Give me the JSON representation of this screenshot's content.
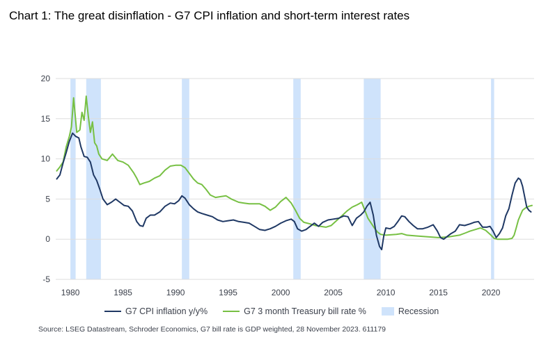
{
  "title": "Chart 1: The great disinflation - G7 CPI inflation and short-term interest rates",
  "source": "Source: LSEG Datastream, Schroder Economics, G7 bill rate is GDP weighted, 28 November 2023. 611179",
  "colors": {
    "cpi": "#1f3864",
    "bill": "#77c043",
    "recession": "#cfe3fb",
    "grid": "#dedede"
  },
  "chart_data": {
    "type": "line",
    "title": "Chart 1: The great disinflation - G7 CPI inflation and short-term interest rates",
    "xlabel": "",
    "ylabel": "",
    "xlim": [
      1978.6,
      2024.1
    ],
    "ylim": [
      -5,
      20
    ],
    "y_ticks": [
      20,
      15,
      10,
      5,
      0,
      -5
    ],
    "x_ticks": [
      1980,
      1985,
      1990,
      1995,
      2000,
      2005,
      2010,
      2015,
      2020
    ],
    "grid": true,
    "legend": "bottom",
    "recessions": [
      [
        1980.0,
        1980.5
      ],
      [
        1981.5,
        1982.9
      ],
      [
        1990.6,
        1991.3
      ],
      [
        2001.2,
        2001.9
      ],
      [
        2007.9,
        2009.5
      ],
      [
        2020.0,
        2020.3
      ]
    ],
    "series": [
      {
        "name": "G7 CPI inflation y/y%",
        "x": [
          1978.7,
          1979.0,
          1979.3,
          1979.6,
          1979.9,
          1980.2,
          1980.5,
          1980.8,
          1981.0,
          1981.3,
          1981.6,
          1981.9,
          1982.2,
          1982.5,
          1982.8,
          1983.1,
          1983.5,
          1983.9,
          1984.3,
          1984.7,
          1985.1,
          1985.5,
          1985.9,
          1986.3,
          1986.6,
          1986.9,
          1987.2,
          1987.6,
          1988.0,
          1988.5,
          1989.0,
          1989.5,
          1989.9,
          1990.3,
          1990.6,
          1990.9,
          1991.3,
          1991.7,
          1992.1,
          1992.5,
          1993.0,
          1993.5,
          1994.0,
          1994.5,
          1995.0,
          1995.5,
          1996.0,
          1996.5,
          1997.0,
          1997.5,
          1998.0,
          1998.5,
          1999.0,
          1999.5,
          2000.0,
          2000.5,
          2001.0,
          2001.3,
          2001.6,
          2002.0,
          2002.4,
          2002.8,
          2003.2,
          2003.6,
          2004.0,
          2004.5,
          2005.0,
          2005.5,
          2006.0,
          2006.4,
          2006.8,
          2007.2,
          2007.6,
          2007.9,
          2008.2,
          2008.5,
          2008.8,
          2009.1,
          2009.4,
          2009.6,
          2009.8,
          2010.0,
          2010.4,
          2010.8,
          2011.2,
          2011.5,
          2011.8,
          2012.2,
          2012.6,
          2013.0,
          2013.5,
          2014.0,
          2014.5,
          2014.9,
          2015.2,
          2015.5,
          2015.8,
          2016.2,
          2016.6,
          2017.0,
          2017.5,
          2018.0,
          2018.4,
          2018.8,
          2019.2,
          2019.6,
          2019.9,
          2020.2,
          2020.5,
          2020.8,
          2021.1,
          2021.4,
          2021.7,
          2022.0,
          2022.3,
          2022.6,
          2022.8,
          2023.0,
          2023.2,
          2023.4,
          2023.6,
          2023.8
        ],
        "y": [
          7.5,
          8.0,
          9.5,
          10.8,
          12.2,
          13.2,
          12.8,
          12.6,
          11.5,
          10.3,
          10.2,
          9.6,
          8.0,
          7.3,
          6.2,
          5.0,
          4.3,
          4.6,
          5.0,
          4.6,
          4.2,
          4.1,
          3.5,
          2.2,
          1.7,
          1.6,
          2.6,
          3.0,
          3.0,
          3.4,
          4.1,
          4.5,
          4.4,
          4.8,
          5.4,
          5.1,
          4.3,
          3.8,
          3.4,
          3.2,
          3.0,
          2.8,
          2.4,
          2.2,
          2.3,
          2.4,
          2.2,
          2.1,
          2.0,
          1.6,
          1.2,
          1.1,
          1.3,
          1.6,
          2.0,
          2.3,
          2.5,
          2.2,
          1.3,
          1.0,
          1.2,
          1.6,
          2.0,
          1.6,
          2.1,
          2.4,
          2.5,
          2.6,
          2.9,
          2.8,
          1.7,
          2.6,
          3.0,
          3.4,
          4.1,
          4.6,
          3.0,
          0.5,
          -0.9,
          -1.3,
          0.4,
          1.4,
          1.3,
          1.6,
          2.3,
          2.9,
          2.8,
          2.2,
          1.7,
          1.3,
          1.3,
          1.5,
          1.8,
          1.0,
          0.2,
          0.0,
          0.3,
          0.7,
          1.0,
          1.8,
          1.7,
          1.9,
          2.1,
          2.2,
          1.5,
          1.5,
          1.6,
          1.0,
          0.2,
          0.7,
          1.4,
          2.9,
          3.8,
          5.5,
          7.0,
          7.6,
          7.4,
          6.6,
          5.3,
          4.0,
          3.6,
          3.4
        ]
      },
      {
        "name": "G7 3 month Treasury bill rate %",
        "x": [
          1978.7,
          1979.0,
          1979.3,
          1979.6,
          1979.9,
          1980.1,
          1980.3,
          1980.6,
          1980.9,
          1981.1,
          1981.3,
          1981.5,
          1981.7,
          1981.9,
          1982.1,
          1982.3,
          1982.5,
          1982.7,
          1983.0,
          1983.5,
          1984.0,
          1984.5,
          1985.0,
          1985.5,
          1986.0,
          1986.3,
          1986.6,
          1987.0,
          1987.5,
          1988.0,
          1988.5,
          1989.0,
          1989.5,
          1990.0,
          1990.5,
          1990.9,
          1991.3,
          1991.7,
          1992.1,
          1992.5,
          1992.9,
          1993.3,
          1993.8,
          1994.3,
          1994.8,
          1995.3,
          1996.0,
          1996.5,
          1997.0,
          1997.5,
          1998.0,
          1998.5,
          1999.0,
          1999.5,
          2000.0,
          2000.5,
          2001.0,
          2001.4,
          2001.8,
          2002.2,
          2002.8,
          2003.3,
          2003.8,
          2004.3,
          2004.8,
          2005.3,
          2005.8,
          2006.3,
          2006.8,
          2007.3,
          2007.7,
          2008.0,
          2008.3,
          2008.6,
          2008.9,
          2009.2,
          2009.5,
          2010.0,
          2011.0,
          2011.5,
          2012.0,
          2013.0,
          2014.0,
          2015.0,
          2016.0,
          2017.0,
          2017.6,
          2018.0,
          2018.5,
          2019.0,
          2019.5,
          2020.0,
          2020.3,
          2020.6,
          2021.0,
          2021.6,
          2022.0,
          2022.2,
          2022.4,
          2022.6,
          2022.8,
          2023.0,
          2023.3,
          2023.6,
          2023.9
        ],
        "y": [
          8.5,
          9.0,
          9.6,
          11.5,
          12.8,
          14.0,
          17.6,
          13.3,
          13.6,
          15.8,
          14.8,
          17.8,
          15.3,
          13.3,
          14.6,
          12.0,
          11.6,
          10.6,
          10.0,
          9.8,
          10.6,
          9.8,
          9.6,
          9.2,
          8.3,
          7.6,
          6.8,
          7.0,
          7.2,
          7.6,
          7.9,
          8.6,
          9.1,
          9.2,
          9.2,
          8.9,
          8.2,
          7.5,
          7.0,
          6.8,
          6.2,
          5.5,
          5.2,
          5.3,
          5.4,
          5.0,
          4.6,
          4.5,
          4.4,
          4.4,
          4.4,
          4.1,
          3.6,
          4.0,
          4.7,
          5.2,
          4.5,
          3.6,
          2.6,
          2.1,
          1.9,
          1.7,
          1.6,
          1.5,
          1.7,
          2.3,
          2.9,
          3.5,
          4.0,
          4.3,
          4.6,
          3.6,
          2.6,
          2.0,
          1.4,
          0.9,
          0.6,
          0.5,
          0.6,
          0.7,
          0.5,
          0.4,
          0.3,
          0.2,
          0.3,
          0.5,
          0.8,
          1.0,
          1.2,
          1.4,
          1.1,
          0.5,
          0.1,
          0.0,
          0.0,
          0.0,
          0.1,
          0.5,
          1.4,
          2.4,
          3.0,
          3.6,
          3.9,
          4.1,
          4.2
        ]
      }
    ],
    "legend_labels": {
      "cpi": "G7 CPI inflation y/y%",
      "bill": "G7 3 month Treasury bill rate %",
      "recession": "Recession"
    }
  }
}
